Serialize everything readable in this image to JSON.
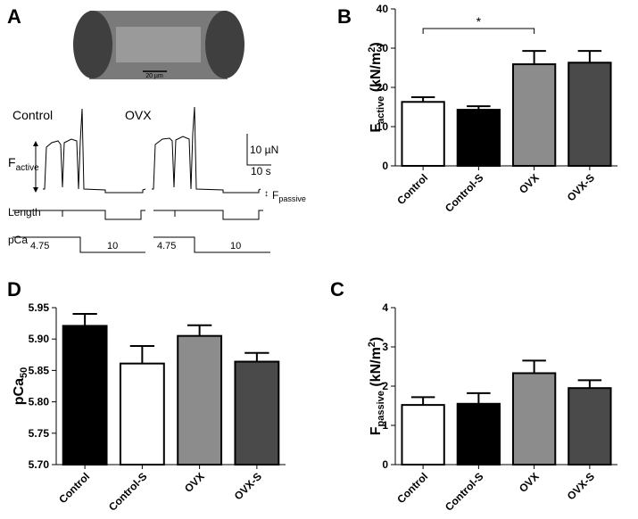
{
  "panel_a": {
    "letter": "A",
    "scale_bar": "20 µm",
    "control": "Control",
    "ovx": "OVX",
    "f_active_main": "F",
    "f_active_sub": "active",
    "force_scale": "10 µN",
    "time_scale": "10 s",
    "f_passive_main": "F",
    "f_passive_sub": "passive",
    "length": "Length",
    "pca": "pCa",
    "pca_control_high": "4.75",
    "pca_control_low": "10",
    "pca_ovx_high": "4.75",
    "pca_ovx_low": "10"
  },
  "chart_data": [
    {
      "type": "bar",
      "letter": "B",
      "categories": [
        "Control",
        "Control-S",
        "OVX",
        "OVX-S"
      ],
      "values": [
        16.3,
        14.3,
        25.9,
        26.3
      ],
      "errors": [
        1.2,
        0.9,
        3.4,
        3.0
      ],
      "colors": [
        "#ffffff",
        "#000000",
        "#8c8c8c",
        "#4a4a4a"
      ],
      "ylim": [
        0,
        40
      ],
      "yticks": [
        0,
        10,
        20,
        30,
        40
      ],
      "ylabel": {
        "main": "F",
        "sub": "active",
        "unit": " (kN/m",
        "sup": "2",
        "close": ")"
      },
      "annotation": "*"
    },
    {
      "type": "bar",
      "letter": "D",
      "categories": [
        "Control",
        "Control-S",
        "OVX",
        "OVX-S"
      ],
      "values": [
        5.921,
        5.861,
        5.905,
        5.864
      ],
      "errors": [
        0.019,
        0.028,
        0.017,
        0.014
      ],
      "colors": [
        "#000000",
        "#ffffff",
        "#8c8c8c",
        "#4a4a4a"
      ],
      "ylim": [
        5.7,
        5.95
      ],
      "yticks": [
        {
          "value": 5.7,
          "label": "5.70"
        },
        5.75,
        {
          "value": 5.8,
          "label": "5.80"
        },
        5.85,
        {
          "value": 5.9,
          "label": "5.90"
        },
        5.95
      ],
      "ylabel": {
        "main": "pCa",
        "sub": "50"
      }
    },
    {
      "type": "bar",
      "letter": "C",
      "categories": [
        "Control",
        "Control-S",
        "OVX",
        "OVX-S"
      ],
      "values": [
        1.52,
        1.55,
        2.33,
        1.95
      ],
      "errors": [
        0.2,
        0.27,
        0.32,
        0.2
      ],
      "colors": [
        "#ffffff",
        "#000000",
        "#8c8c8c",
        "#4a4a4a"
      ],
      "ylim": [
        0,
        4
      ],
      "yticks": [
        0,
        1,
        2,
        3,
        4
      ],
      "ylabel": {
        "main": "F",
        "sub": "passive",
        "unit": " (kN/m",
        "sup": "2",
        "close": ")"
      }
    }
  ]
}
